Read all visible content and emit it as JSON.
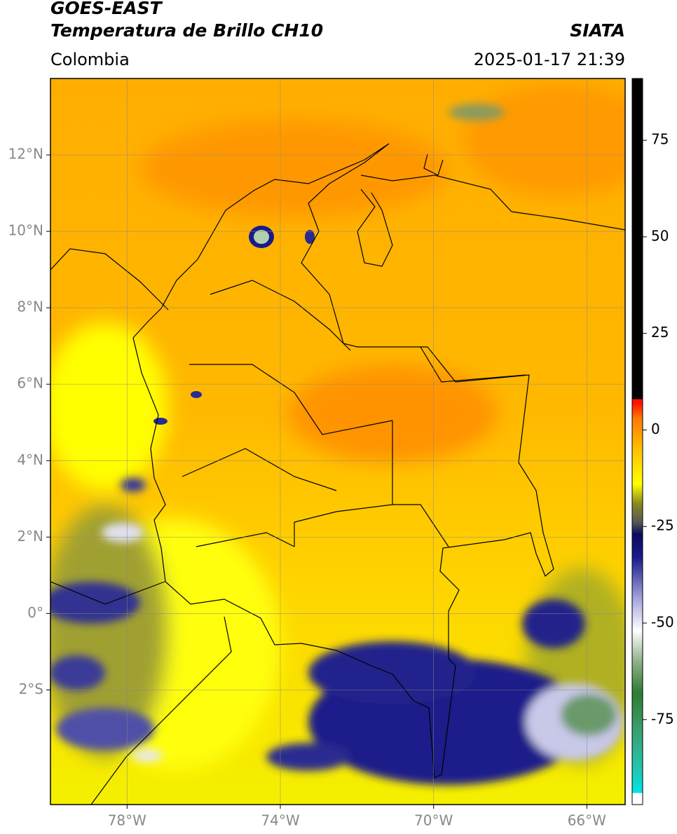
{
  "chart_data": {
    "type": "map",
    "title": "GOES-EAST",
    "subtitle": "Temperatura de Brillo CH10",
    "source": "SIATA",
    "region": "Colombia",
    "timestamp": "2025-01-17 21:39",
    "xlim": [
      -80,
      -65
    ],
    "ylim": [
      -5,
      14
    ],
    "xticks": [
      {
        "value": -78,
        "label": "78°W"
      },
      {
        "value": -74,
        "label": "74°W"
      },
      {
        "value": -70,
        "label": "70°W"
      },
      {
        "value": -66,
        "label": "66°W"
      }
    ],
    "yticks": [
      {
        "value": -2,
        "label": "2°S"
      },
      {
        "value": 0,
        "label": "0°"
      },
      {
        "value": 2,
        "label": "2°N"
      },
      {
        "value": 4,
        "label": "4°N"
      },
      {
        "value": 6,
        "label": "6°N"
      },
      {
        "value": 8,
        "label": "8°N"
      },
      {
        "value": 10,
        "label": "10°N"
      },
      {
        "value": 12,
        "label": "12°N"
      }
    ],
    "grid": true,
    "colorbar": {
      "range": [
        -97,
        91
      ],
      "ticks": [
        -75,
        -50,
        -25,
        0,
        25,
        50,
        75
      ],
      "stops": [
        {
          "value": -97,
          "color": "#ffffff"
        },
        {
          "value": -94,
          "color": "#ffffff"
        },
        {
          "value": -94,
          "color": "#00e5e5"
        },
        {
          "value": -88,
          "color": "#20c8b0"
        },
        {
          "value": -78,
          "color": "#3aa070"
        },
        {
          "value": -68,
          "color": "#2e7d32"
        },
        {
          "value": -60,
          "color": "#8fb08a"
        },
        {
          "value": -52,
          "color": "#ffffff"
        },
        {
          "value": -44,
          "color": "#a8a8e0"
        },
        {
          "value": -33,
          "color": "#1a1a8c"
        },
        {
          "value": -27,
          "color": "#0a0a60"
        },
        {
          "value": -24,
          "color": "#555555"
        },
        {
          "value": -19,
          "color": "#8a8a20"
        },
        {
          "value": -14,
          "color": "#ffff00"
        },
        {
          "value": -5,
          "color": "#ffc000"
        },
        {
          "value": 3,
          "color": "#ff7a00"
        },
        {
          "value": 7,
          "color": "#ff1000"
        },
        {
          "value": 8,
          "color": "#ff1000"
        },
        {
          "value": 8,
          "color": "#000000"
        },
        {
          "value": 91,
          "color": "#000000"
        }
      ]
    }
  }
}
